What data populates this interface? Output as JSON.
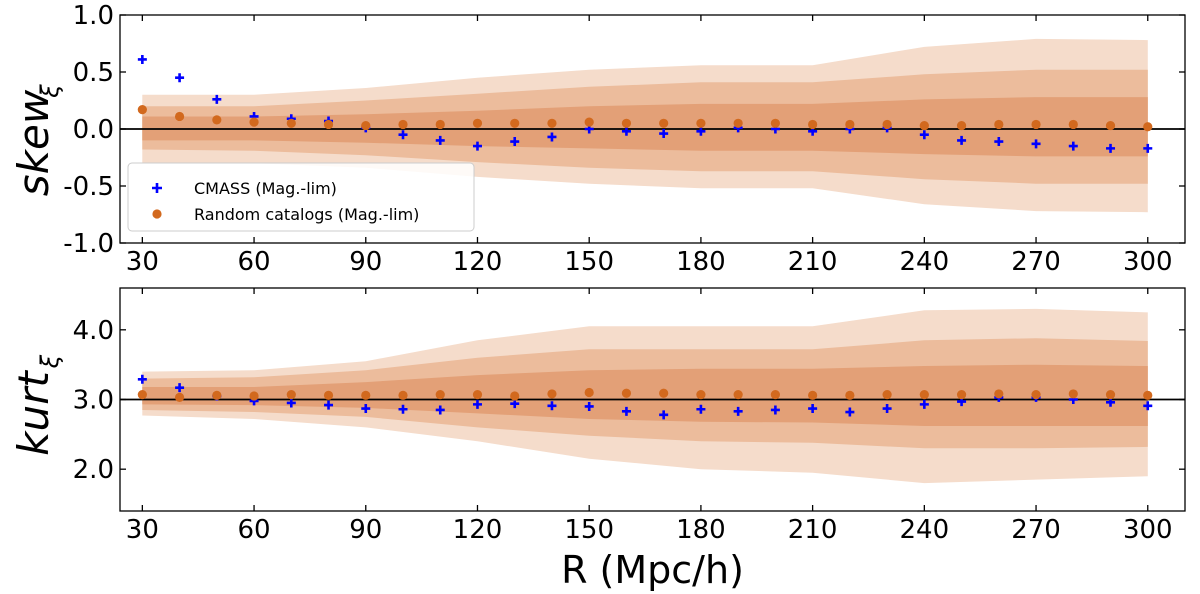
{
  "colors": {
    "cmass": "#0000ff",
    "random": "#d2691e",
    "band1": "#f5dccb",
    "band2": "#ecbc9c",
    "band3": "#e3a077",
    "refline": "#000000"
  },
  "chart_data": [
    {
      "type": "scatter",
      "panel": "top",
      "ylabel_main": "skew",
      "ylabel_sub": "ξ",
      "xlabel": "",
      "xlim": [
        24,
        310
      ],
      "ylim": [
        -1.0,
        1.0
      ],
      "xticks": [
        30,
        60,
        90,
        120,
        150,
        180,
        210,
        240,
        270,
        300
      ],
      "xtick_labels": [
        "30",
        "60",
        "90",
        "120",
        "150",
        "180",
        "210",
        "240",
        "270",
        "300"
      ],
      "yticks": [
        -1.0,
        -0.5,
        0.0,
        0.5,
        1.0
      ],
      "ytick_labels": [
        "-1.0",
        "-0.5",
        "0.0",
        "0.5",
        "1.0"
      ],
      "reference_line": 0.0,
      "legend": {
        "position": "lower-left",
        "entries": [
          "CMASS (Mag.-lim)",
          "Random catalogs (Mag.-lim)"
        ]
      },
      "x": [
        30,
        40,
        50,
        60,
        70,
        80,
        90,
        100,
        110,
        120,
        130,
        140,
        150,
        160,
        170,
        180,
        190,
        200,
        210,
        220,
        230,
        240,
        250,
        260,
        270,
        280,
        290,
        300
      ],
      "series": [
        {
          "name": "CMASS (Mag.-lim)",
          "marker": "plus",
          "values": [
            0.61,
            0.45,
            0.26,
            0.11,
            0.09,
            0.07,
            0.01,
            -0.05,
            -0.1,
            -0.15,
            -0.11,
            -0.07,
            0.0,
            -0.02,
            -0.04,
            -0.02,
            0.01,
            0.0,
            -0.02,
            0.0,
            0.01,
            -0.05,
            -0.1,
            -0.11,
            -0.13,
            -0.15,
            -0.17,
            -0.17
          ]
        },
        {
          "name": "Random catalogs (Mag.-lim)",
          "marker": "circle",
          "values": [
            0.17,
            0.11,
            0.08,
            0.06,
            0.05,
            0.04,
            0.03,
            0.04,
            0.04,
            0.05,
            0.05,
            0.05,
            0.06,
            0.05,
            0.05,
            0.05,
            0.05,
            0.05,
            0.04,
            0.04,
            0.04,
            0.03,
            0.03,
            0.04,
            0.04,
            0.04,
            0.03,
            0.02
          ]
        }
      ],
      "bands": [
        {
          "name": "3-sigma",
          "x": [
            30,
            60,
            90,
            120,
            150,
            180,
            210,
            240,
            270,
            300
          ],
          "upper": [
            0.3,
            0.3,
            0.36,
            0.45,
            0.52,
            0.56,
            0.56,
            0.72,
            0.79,
            0.78
          ],
          "lower": [
            -0.3,
            -0.3,
            -0.34,
            -0.42,
            -0.48,
            -0.52,
            -0.52,
            -0.66,
            -0.72,
            -0.73
          ]
        },
        {
          "name": "2-sigma",
          "x": [
            30,
            60,
            90,
            120,
            150,
            180,
            210,
            240,
            270,
            300
          ],
          "upper": [
            0.2,
            0.2,
            0.25,
            0.31,
            0.37,
            0.41,
            0.41,
            0.48,
            0.52,
            0.52
          ],
          "lower": [
            -0.18,
            -0.19,
            -0.23,
            -0.29,
            -0.34,
            -0.37,
            -0.37,
            -0.44,
            -0.48,
            -0.48
          ]
        },
        {
          "name": "1-sigma",
          "x": [
            30,
            60,
            90,
            120,
            150,
            180,
            210,
            240,
            270,
            300
          ],
          "upper": [
            0.11,
            0.11,
            0.13,
            0.16,
            0.2,
            0.22,
            0.22,
            0.26,
            0.28,
            0.28
          ],
          "lower": [
            -0.1,
            -0.1,
            -0.12,
            -0.15,
            -0.17,
            -0.19,
            -0.19,
            -0.22,
            -0.24,
            -0.24
          ]
        }
      ]
    },
    {
      "type": "scatter",
      "panel": "bottom",
      "ylabel_main": "kurt",
      "ylabel_sub": "ξ",
      "xlabel": "R (Mpc/h)",
      "xlim": [
        24,
        310
      ],
      "ylim": [
        1.4,
        4.6
      ],
      "xticks": [
        30,
        60,
        90,
        120,
        150,
        180,
        210,
        240,
        270,
        300
      ],
      "xtick_labels": [
        "30",
        "60",
        "90",
        "120",
        "150",
        "180",
        "210",
        "240",
        "270",
        "300"
      ],
      "yticks": [
        2.0,
        3.0,
        4.0
      ],
      "ytick_labels": [
        "2.0",
        "3.0",
        "4.0"
      ],
      "reference_line": 3.0,
      "x": [
        30,
        40,
        50,
        60,
        70,
        80,
        90,
        100,
        110,
        120,
        130,
        140,
        150,
        160,
        170,
        180,
        190,
        200,
        210,
        220,
        230,
        240,
        250,
        260,
        270,
        280,
        290,
        300
      ],
      "series": [
        {
          "name": "CMASS (Mag.-lim)",
          "marker": "plus",
          "values": [
            3.29,
            3.17,
            3.05,
            2.98,
            2.95,
            2.92,
            2.87,
            2.86,
            2.85,
            2.93,
            2.94,
            2.91,
            2.9,
            2.83,
            2.78,
            2.86,
            2.83,
            2.85,
            2.87,
            2.82,
            2.87,
            2.93,
            2.97,
            3.03,
            3.03,
            3.0,
            2.96,
            2.91
          ]
        },
        {
          "name": "Random catalogs (Mag.-lim)",
          "marker": "circle",
          "values": [
            3.07,
            3.03,
            3.06,
            3.05,
            3.07,
            3.06,
            3.06,
            3.06,
            3.07,
            3.07,
            3.05,
            3.08,
            3.1,
            3.09,
            3.09,
            3.07,
            3.07,
            3.07,
            3.06,
            3.06,
            3.07,
            3.07,
            3.07,
            3.08,
            3.07,
            3.08,
            3.07,
            3.06
          ]
        }
      ],
      "bands": [
        {
          "name": "3-sigma",
          "x": [
            30,
            60,
            90,
            120,
            150,
            180,
            210,
            240,
            270,
            300
          ],
          "upper": [
            3.4,
            3.42,
            3.55,
            3.85,
            4.05,
            4.05,
            4.05,
            4.28,
            4.3,
            4.25
          ],
          "lower": [
            2.77,
            2.72,
            2.6,
            2.4,
            2.15,
            2.0,
            1.95,
            1.8,
            1.85,
            1.9
          ]
        },
        {
          "name": "2-sigma",
          "x": [
            30,
            60,
            90,
            120,
            150,
            180,
            210,
            240,
            270,
            300
          ],
          "upper": [
            3.3,
            3.32,
            3.42,
            3.6,
            3.72,
            3.72,
            3.72,
            3.85,
            3.88,
            3.84
          ],
          "lower": [
            2.85,
            2.82,
            2.75,
            2.6,
            2.48,
            2.4,
            2.38,
            2.3,
            2.3,
            2.32
          ]
        },
        {
          "name": "1-sigma",
          "x": [
            30,
            60,
            90,
            120,
            150,
            180,
            210,
            240,
            270,
            300
          ],
          "upper": [
            3.18,
            3.18,
            3.25,
            3.35,
            3.42,
            3.44,
            3.44,
            3.48,
            3.5,
            3.48
          ],
          "lower": [
            2.93,
            2.92,
            2.88,
            2.8,
            2.72,
            2.68,
            2.67,
            2.62,
            2.62,
            2.62
          ]
        }
      ]
    }
  ]
}
